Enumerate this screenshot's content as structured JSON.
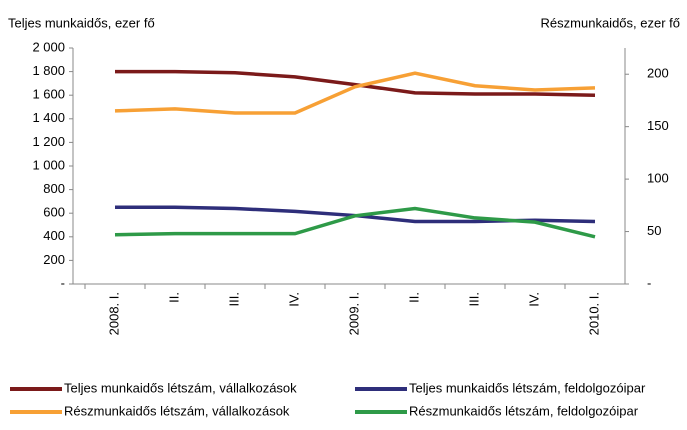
{
  "chart_data": {
    "type": "line",
    "y_label": "Teljes munkaidős, ezer fő",
    "y2_label": "Részmunkaidős, ezer  fő",
    "categories": [
      "2008. I.",
      "II.",
      "III.",
      "IV.",
      "2009. I.",
      "II.",
      "III.",
      "IV.",
      "2010. I."
    ],
    "series": [
      {
        "name": "Teljes munkaidős létszám, vállalkozások",
        "color": "#7b1a1a",
        "values": [
          1800,
          1800,
          1790,
          1755,
          1690,
          1620,
          1610,
          1610,
          1600
        ]
      },
      {
        "name": "Teljes munkaidős létszám, feldolgozóipar",
        "color": "#2e2e7a",
        "values": [
          650,
          650,
          640,
          615,
          580,
          530,
          530,
          540,
          530
        ]
      },
      {
        "name": "Részmunkaidős létszám, vállalkozások",
        "color": "#f7a035",
        "axis": "y2",
        "values": [
          165,
          167,
          163,
          163,
          188,
          201,
          189,
          185,
          187
        ]
      },
      {
        "name": "Részmunkaidős létszám, feldolgozóipar",
        "color": "#2e9a48",
        "axis": "y2",
        "values": [
          47,
          48,
          48,
          48,
          65,
          72,
          63,
          59,
          45
        ]
      }
    ],
    "ylim": [
      0,
      2000
    ],
    "yticks": [
      {
        "value": 0,
        "label": "-"
      },
      200,
      400,
      600,
      800,
      {
        "value": 1000,
        "label": "1 000"
      },
      {
        "value": 1200,
        "label": "1 200"
      },
      {
        "value": 1400,
        "label": "1 400"
      },
      {
        "value": 1600,
        "label": "1 600"
      },
      {
        "value": 1800,
        "label": "1 800"
      },
      {
        "value": 2000,
        "label": "2 000"
      }
    ],
    "y2lim": [
      0,
      225
    ],
    "y2ticks": [
      {
        "value": 0,
        "label": "-"
      },
      50,
      100,
      150,
      200
    ]
  }
}
